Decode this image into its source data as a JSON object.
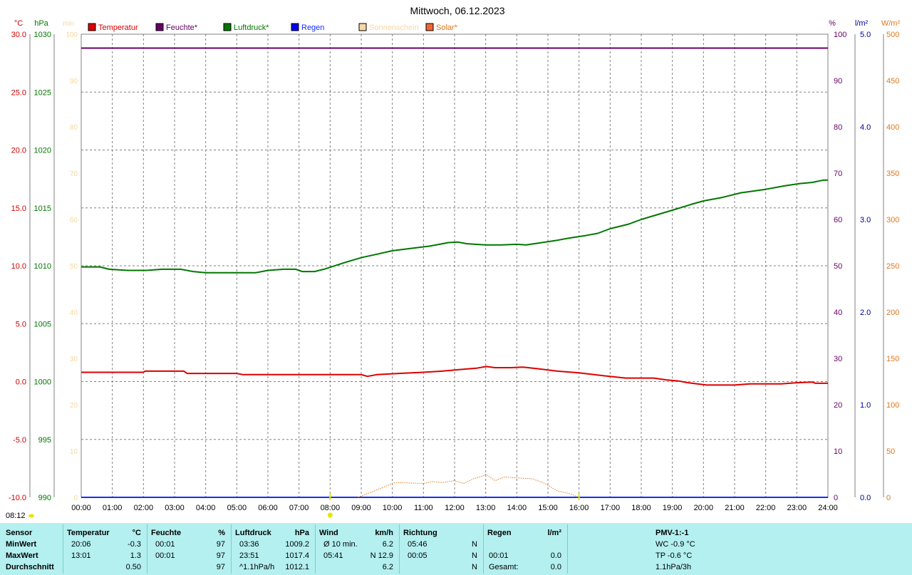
{
  "title": "Mittwoch, 06.12.2023",
  "chart_data": {
    "type": "line",
    "title": "Mittwoch, 06.12.2023",
    "x_ticks": [
      "00:00",
      "01:00",
      "02:00",
      "03:00",
      "04:00",
      "05:00",
      "06:00",
      "07:00",
      "08:00",
      "09:00",
      "10:00",
      "11:00",
      "12:00",
      "13:00",
      "14:00",
      "15:00",
      "16:00",
      "17:00",
      "18:00",
      "19:00",
      "20:00",
      "21:00",
      "22:00",
      "23:00",
      "24:00"
    ],
    "grid": true,
    "legend_position": "top",
    "axes": {
      "temp": {
        "unit": "°C",
        "ticks": [
          "30.0",
          "25.0",
          "20.0",
          "15.0",
          "10.0",
          "5.0",
          "0.0",
          "-5.0",
          "-10.0"
        ],
        "range": [
          -10,
          30
        ],
        "color": "#cc0000"
      },
      "pressure": {
        "unit": "hPa",
        "ticks": [
          "1030",
          "1025",
          "1020",
          "1015",
          "1010",
          "1005",
          "1000",
          "995",
          "990"
        ],
        "range": [
          990,
          1030
        ],
        "color": "#007700"
      },
      "sunshine": {
        "unit": "min",
        "ticks": [
          "100",
          "90",
          "80",
          "70",
          "60",
          "50",
          "40",
          "30",
          "20",
          "10",
          "0"
        ],
        "range": [
          0,
          100
        ],
        "color": "#f8d8a0"
      },
      "humidity": {
        "unit": "%",
        "ticks": [
          "100",
          "90",
          "80",
          "70",
          "60",
          "50",
          "40",
          "30",
          "20",
          "10",
          "0"
        ],
        "range": [
          0,
          100
        ],
        "color": "#660066"
      },
      "rain": {
        "unit": "l/m²",
        "ticks": [
          "5.0",
          "4.0",
          "3.0",
          "2.0",
          "1.0",
          "0.0"
        ],
        "range": [
          0,
          5
        ],
        "color": "#000099"
      },
      "solar": {
        "unit": "W/m²",
        "ticks": [
          "500",
          "450",
          "400",
          "350",
          "300",
          "250",
          "200",
          "150",
          "100",
          "50",
          "0"
        ],
        "range": [
          0,
          500
        ],
        "color": "#e07820"
      }
    },
    "series": [
      {
        "name": "Temperatur",
        "axis": "temp",
        "color": "#dd0000",
        "swatch": "#dd0000",
        "style": "solid",
        "values": [
          [
            0,
            0.8
          ],
          [
            2,
            0.8
          ],
          [
            2.05,
            0.9
          ],
          [
            3.3,
            0.9
          ],
          [
            3.4,
            0.7
          ],
          [
            5,
            0.7
          ],
          [
            5.2,
            0.6
          ],
          [
            9.0,
            0.6
          ],
          [
            9.2,
            0.45
          ],
          [
            9.5,
            0.6
          ],
          [
            10.2,
            0.7
          ],
          [
            11,
            0.8
          ],
          [
            11.6,
            0.9
          ],
          [
            12,
            1.0
          ],
          [
            12.7,
            1.15
          ],
          [
            13.02,
            1.3
          ],
          [
            13.3,
            1.2
          ],
          [
            13.8,
            1.2
          ],
          [
            14.2,
            1.25
          ],
          [
            14.7,
            1.1
          ],
          [
            15.3,
            0.9
          ],
          [
            16,
            0.75
          ],
          [
            16.8,
            0.5
          ],
          [
            17.5,
            0.3
          ],
          [
            18.4,
            0.3
          ],
          [
            18.8,
            0.15
          ],
          [
            19.2,
            0.05
          ],
          [
            19.5,
            -0.1
          ],
          [
            20.1,
            -0.3
          ],
          [
            21,
            -0.3
          ],
          [
            21.5,
            -0.2
          ],
          [
            22.5,
            -0.2
          ],
          [
            23,
            -0.1
          ],
          [
            23.5,
            -0.05
          ],
          [
            23.6,
            -0.15
          ],
          [
            24,
            -0.15
          ]
        ]
      },
      {
        "name": "Feuchte*",
        "axis": "humidity",
        "color": "#660066",
        "swatch": "#660066",
        "style": "solid",
        "values": [
          [
            0,
            97
          ],
          [
            24,
            97
          ]
        ]
      },
      {
        "name": "Luftdruck*",
        "axis": "pressure",
        "color": "#007700",
        "swatch": "#007700",
        "style": "solid",
        "values": [
          [
            0,
            1009.9
          ],
          [
            0.6,
            1009.9
          ],
          [
            0.9,
            1009.7
          ],
          [
            1.5,
            1009.6
          ],
          [
            2.1,
            1009.6
          ],
          [
            2.6,
            1009.7
          ],
          [
            3.2,
            1009.7
          ],
          [
            3.6,
            1009.5
          ],
          [
            4,
            1009.4
          ],
          [
            5,
            1009.4
          ],
          [
            5.6,
            1009.4
          ],
          [
            6,
            1009.6
          ],
          [
            6.5,
            1009.7
          ],
          [
            6.9,
            1009.7
          ],
          [
            7.1,
            1009.5
          ],
          [
            7.5,
            1009.5
          ],
          [
            7.8,
            1009.7
          ],
          [
            8.5,
            1010.3
          ],
          [
            9,
            1010.7
          ],
          [
            9.5,
            1011.0
          ],
          [
            10,
            1011.3
          ],
          [
            10.6,
            1011.5
          ],
          [
            11.2,
            1011.7
          ],
          [
            11.8,
            1012.0
          ],
          [
            12.1,
            1012.05
          ],
          [
            12.4,
            1011.9
          ],
          [
            13,
            1011.8
          ],
          [
            13.5,
            1011.8
          ],
          [
            14,
            1011.85
          ],
          [
            14.3,
            1011.8
          ],
          [
            14.8,
            1012.0
          ],
          [
            15.3,
            1012.2
          ],
          [
            15.7,
            1012.4
          ],
          [
            16.2,
            1012.6
          ],
          [
            16.6,
            1012.8
          ],
          [
            17,
            1013.2
          ],
          [
            17.6,
            1013.6
          ],
          [
            18,
            1014.0
          ],
          [
            18.5,
            1014.4
          ],
          [
            19,
            1014.8
          ],
          [
            19.6,
            1015.3
          ],
          [
            20,
            1015.6
          ],
          [
            20.6,
            1015.9
          ],
          [
            21.2,
            1016.3
          ],
          [
            22,
            1016.6
          ],
          [
            22.6,
            1016.9
          ],
          [
            23.1,
            1017.1
          ],
          [
            23.5,
            1017.2
          ],
          [
            23.85,
            1017.4
          ],
          [
            24,
            1017.4
          ]
        ]
      },
      {
        "name": "Regen",
        "axis": "rain",
        "color": "#1030ff",
        "swatch": "#0000ee",
        "style": "solid",
        "values": [
          [
            0,
            0
          ],
          [
            24,
            0
          ]
        ]
      },
      {
        "name": "Sonnenschein",
        "axis": "sunshine",
        "color": "#f8d8a0",
        "swatch": "#f8d8a0",
        "style": "none",
        "values": []
      },
      {
        "name": "Solar*",
        "axis": "solar",
        "color": "#e07820",
        "swatch": "#ee6633",
        "style": "dotted",
        "values": [
          [
            8.9,
            0
          ],
          [
            9.5,
            8
          ],
          [
            10,
            15
          ],
          [
            10.1,
            16
          ],
          [
            11,
            15
          ],
          [
            11.3,
            17
          ],
          [
            11.6,
            16
          ],
          [
            12,
            18
          ],
          [
            12.3,
            15
          ],
          [
            12.6,
            20
          ],
          [
            12.9,
            23
          ],
          [
            13,
            25
          ],
          [
            13.3,
            18
          ],
          [
            13.6,
            22
          ],
          [
            14,
            21
          ],
          [
            14.5,
            20
          ],
          [
            14.9,
            15
          ],
          [
            15.3,
            7
          ],
          [
            15.7,
            4
          ],
          [
            16,
            0
          ]
        ]
      }
    ],
    "markers": [
      {
        "time": "08:00",
        "value": 8.0
      },
      {
        "time": "16:00",
        "value": 16.0
      }
    ],
    "sunrise_label": "08:12"
  },
  "stats": {
    "head": [
      "Sensor",
      "Temperatur",
      "°C",
      "Feuchte",
      "%",
      "Luftdruck",
      "hPa",
      "Wind",
      "km/h",
      "Richtung",
      "Regen",
      "l/m²",
      "PMV-1:-1"
    ],
    "rows": [
      {
        "label": "MinWert",
        "t_time": "20:06",
        "t_val": "-0.3",
        "f_time": "00:01",
        "f_val": "97",
        "p_time": "03:36",
        "p_val": "1009.2",
        "w_label": "Ø 10 min.",
        "w_val": "6.2",
        "d_time": "05:46",
        "d_val": "N",
        "r_time": "",
        "r_val": "",
        "pmv": "WC -0.9 °C"
      },
      {
        "label": "MaxWert",
        "t_time": "13:01",
        "t_val": "1.3",
        "f_time": "00:01",
        "f_val": "97",
        "p_time": "23:51",
        "p_val": "1017.4",
        "w_label": "05:41",
        "w_val": "N 12.9",
        "d_time": "00:05",
        "d_val": "N",
        "r_time": "00:01",
        "r_val": "0.0",
        "pmv": "TP -0.6 °C"
      },
      {
        "label": "Durchschnitt",
        "t_time": "",
        "t_val": "0.50",
        "f_time": "",
        "f_val": "97",
        "p_time": "^1.1hPa/h",
        "p_val": "1012.1",
        "w_label": "",
        "w_val": "6.2",
        "d_time": "",
        "d_val": "N",
        "r_time": "Gesamt:",
        "r_val": "0.0",
        "pmv": "1.1hPa/3h"
      }
    ]
  }
}
